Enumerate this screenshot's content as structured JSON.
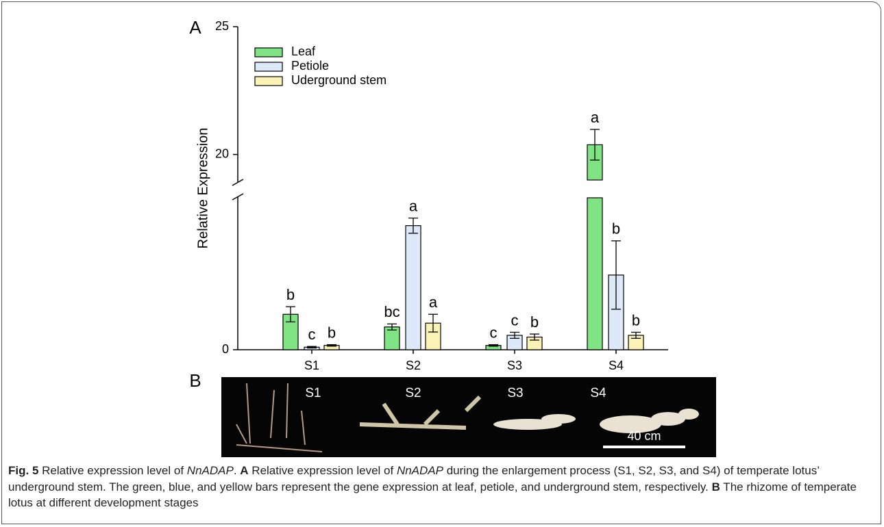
{
  "chart_data": {
    "type": "bar",
    "y_label": "Relative Expression",
    "categories": [
      "S1",
      "S2",
      "S3",
      "S4"
    ],
    "series": [
      {
        "name": "Leaf",
        "color": "#80e383",
        "values": [
          1.4,
          0.9,
          0.17,
          20.38
        ],
        "errors": [
          0.3,
          0.12,
          0.03,
          0.6
        ],
        "letters": [
          "b",
          "bc",
          "c",
          "a"
        ]
      },
      {
        "name": "Petiole",
        "color": "#dde9f8",
        "values": [
          0.1,
          4.9,
          0.57,
          2.95
        ],
        "errors": [
          0.03,
          0.3,
          0.12,
          1.35
        ],
        "letters": [
          "c",
          "a",
          "c",
          "b"
        ]
      },
      {
        "name": "Uderground stem",
        "color": "#fbf3b6",
        "values": [
          0.17,
          1.05,
          0.5,
          0.57
        ],
        "errors": [
          0.03,
          0.35,
          0.12,
          0.12
        ],
        "letters": [
          "b",
          "a",
          "b",
          "b"
        ]
      }
    ],
    "ylim": [
      0,
      25
    ],
    "ybreak": [
      6,
      19
    ],
    "yticks": [
      0,
      20,
      25
    ],
    "legend": "upper-left"
  },
  "figure": {
    "panel_a": "A",
    "panel_b": "B",
    "photo_labels": [
      "S1",
      "S2",
      "S3",
      "S4"
    ],
    "scale_bar": "40 cm",
    "caption": [
      {
        "text": "Fig. 5",
        "style": "bold"
      },
      {
        "text": " Relative expression level of ",
        "style": "normal"
      },
      {
        "text": "NnADAP",
        "style": "italic"
      },
      {
        "text": ". ",
        "style": "normal"
      },
      {
        "text": "A",
        "style": "bold"
      },
      {
        "text": " Relative expression level of ",
        "style": "normal"
      },
      {
        "text": "NnADAP",
        "style": "italic"
      },
      {
        "text": " during the enlargement process (S1, S2, S3, and S4) of temperate lotus’ underground stem. The green, blue, and yellow bars represent the gene expression at leaf, petiole, and underground stem, respectively. ",
        "style": "normal"
      },
      {
        "text": "B",
        "style": "bold"
      },
      {
        "text": " The rhizome of temperate lotus at different development stages",
        "style": "normal"
      }
    ]
  }
}
